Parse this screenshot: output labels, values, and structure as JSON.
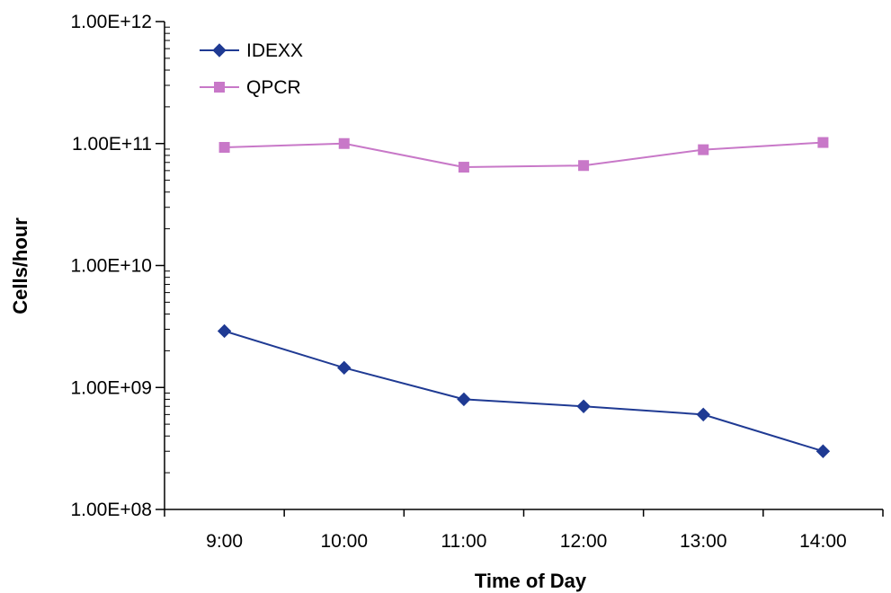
{
  "chart_data": {
    "type": "line",
    "title": "",
    "xlabel": "Time of Day",
    "ylabel": "Cells/hour",
    "y_scale": "log",
    "ylim": [
      100000000,
      1000000000000
    ],
    "y_ticks": [
      100000000,
      1000000000,
      10000000000,
      100000000000,
      1000000000000
    ],
    "y_tick_labels": [
      "1.00E+08",
      "1.00E+09",
      "1.00E+10",
      "1.00E+11",
      "1.00E+12"
    ],
    "categories": [
      "9:00",
      "10:00",
      "11:00",
      "12:00",
      "13:00",
      "14:00"
    ],
    "grid": false,
    "legend_position": "top-left",
    "series": [
      {
        "name": "IDEXX",
        "color": "#1f3a93",
        "marker": "diamond",
        "values": [
          2900000000,
          1450000000,
          800000000,
          700000000,
          600000000,
          300000000
        ]
      },
      {
        "name": "QPCR",
        "color": "#c878c8",
        "marker": "square",
        "values": [
          93000000000,
          100000000000,
          64000000000,
          66000000000,
          89000000000,
          102000000000
        ]
      }
    ]
  }
}
